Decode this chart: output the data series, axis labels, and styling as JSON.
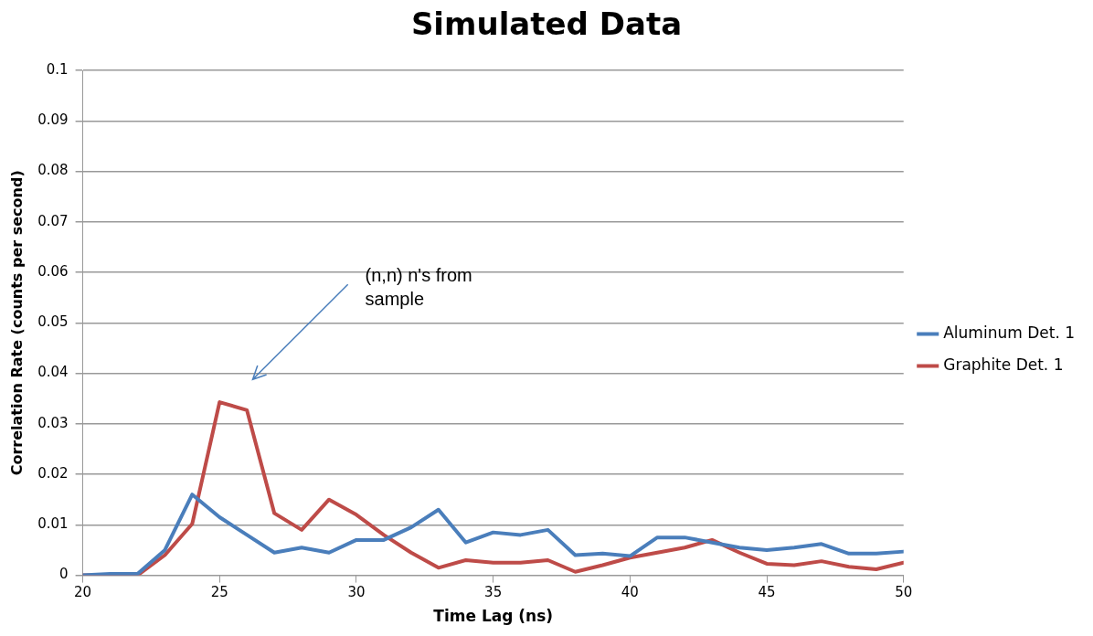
{
  "chart_data": {
    "type": "line",
    "title": "Simulated Data",
    "xlabel": "Time Lag (ns)",
    "ylabel": "Correlation Rate (counts per second)",
    "x": [
      20,
      21,
      22,
      23,
      24,
      25,
      26,
      27,
      28,
      29,
      30,
      31,
      32,
      33,
      34,
      35,
      36,
      37,
      38,
      39,
      40,
      41,
      42,
      43,
      44,
      45,
      46,
      47,
      48,
      49,
      50
    ],
    "series": [
      {
        "name": "Aluminum Det. 1",
        "color": "#4a7ebb",
        "values": [
          0,
          0.0003,
          0.0003,
          0.005,
          0.016,
          0.0115,
          0.008,
          0.0045,
          0.0055,
          0.0045,
          0.007,
          0.007,
          0.0095,
          0.013,
          0.0065,
          0.0085,
          0.008,
          0.009,
          0.004,
          0.0043,
          0.0038,
          0.0075,
          0.0075,
          0.0065,
          0.0055,
          0.005,
          0.0055,
          0.0062,
          0.0043,
          0.0043,
          0.0047
        ]
      },
      {
        "name": "Graphite Det. 1",
        "color": "#be4b48",
        "values": [
          0,
          0,
          0,
          0.004,
          0.0102,
          0.0343,
          0.0327,
          0.0123,
          0.009,
          0.015,
          0.012,
          0.008,
          0.0045,
          0.0015,
          0.003,
          0.0025,
          0.0025,
          0.003,
          0.0007,
          0.002,
          0.0035,
          0.0045,
          0.0055,
          0.007,
          0.0045,
          0.0023,
          0.002,
          0.0028,
          0.0017,
          0.0012,
          0.0025
        ]
      }
    ],
    "xlim": [
      20,
      50
    ],
    "xticks": [
      20,
      25,
      30,
      35,
      40,
      45,
      50
    ],
    "ylim": [
      0,
      0.1
    ],
    "yticks": [
      0,
      0.01,
      0.02,
      0.03,
      0.04,
      0.05,
      0.06,
      0.07,
      0.08,
      0.09,
      0.1
    ],
    "grid": "y",
    "legend": "right",
    "marker": "none",
    "line_style": "solid",
    "annotations": [
      "(n,n) n's from sample"
    ]
  }
}
